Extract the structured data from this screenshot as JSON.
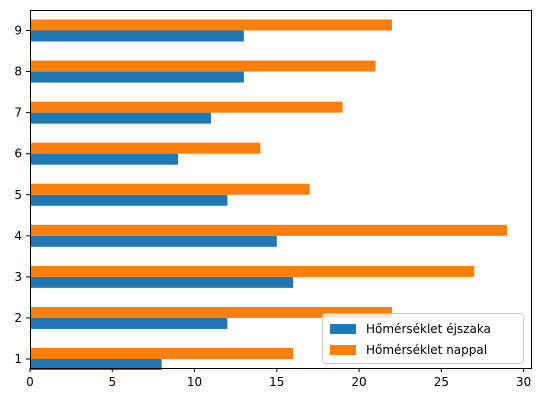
{
  "chart_data": {
    "type": "bar",
    "orientation": "horizontal",
    "categories": [
      "1",
      "2",
      "3",
      "4",
      "5",
      "6",
      "7",
      "8",
      "9"
    ],
    "series": [
      {
        "name": "Hőmérséklet éjszaka",
        "color": "#1f77b4",
        "values": [
          8,
          12,
          16,
          15,
          12,
          9,
          11,
          13,
          13
        ]
      },
      {
        "name": "Hőmérséklet nappal",
        "color": "#ff7f0e",
        "values": [
          16,
          22,
          27,
          29,
          17,
          14,
          19,
          21,
          22
        ]
      }
    ],
    "xticks": [
      0,
      5,
      10,
      15,
      20,
      25,
      30
    ],
    "xlim": [
      0,
      30.45
    ],
    "title": "",
    "xlabel": "",
    "ylabel": "",
    "grid": false,
    "legend_position": "lower-right"
  }
}
